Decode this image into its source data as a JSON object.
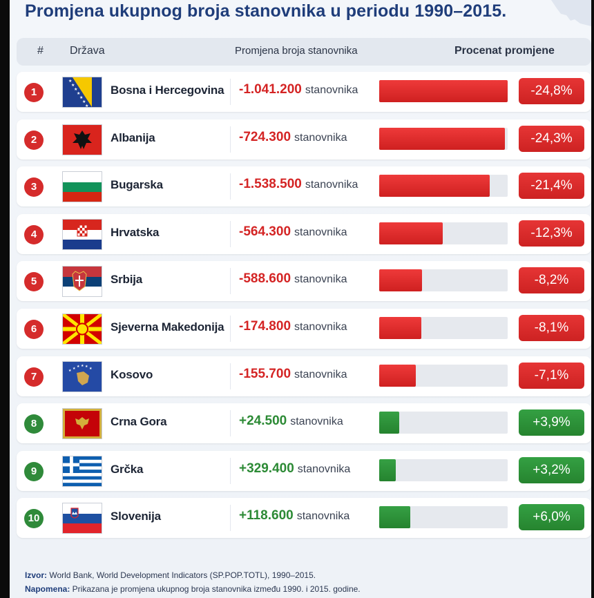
{
  "title": "Promjena ukupnog broja stanovnika u periodu 1990–2015.",
  "headers": {
    "num": "#",
    "country": "Država",
    "change": "Promjena broja stanovnika",
    "pct": "Procenat promjene"
  },
  "colors": {
    "negative": "#d52b2b",
    "positive": "#2f8a3a",
    "title": "#1f3d7a"
  },
  "chart_data": {
    "type": "table",
    "columns": [
      "#",
      "Država",
      "Promjena broja stanovnika",
      "Procenat promjene"
    ],
    "rows": [
      {
        "rank": "1",
        "country": "Bosna i Hercegovina",
        "flag": "flag-bosnia-icon",
        "change": "-1.041.200",
        "unit": "stanovnika",
        "pct": "-24,8%",
        "value": -24.8
      },
      {
        "rank": "2",
        "country": "Albanija",
        "flag": "flag-albania-icon",
        "change": "-724.300",
        "unit": "stanovnika",
        "pct": "-24,3%",
        "value": -24.3
      },
      {
        "rank": "3",
        "country": "Bugarska",
        "flag": "flag-bulgaria-icon",
        "change": "-1.538.500",
        "unit": "stanovnika",
        "pct": "-21,4%",
        "value": -21.4
      },
      {
        "rank": "4",
        "country": "Hrvatska",
        "flag": "flag-croatia-icon",
        "change": "-564.300",
        "unit": "stanovnika",
        "pct": "-12,3%",
        "value": -12.3
      },
      {
        "rank": "5",
        "country": "Srbija",
        "flag": "flag-serbia-icon",
        "change": "-588.600",
        "unit": "stanovnika",
        "pct": "-8,2%",
        "value": -8.2
      },
      {
        "rank": "6",
        "country": "Sjeverna Makedonija",
        "flag": "flag-north-macedonia-icon",
        "change": "-174.800",
        "unit": "stanovnika",
        "pct": "-8,1%",
        "value": -8.1
      },
      {
        "rank": "7",
        "country": "Kosovo",
        "flag": "flag-kosovo-icon",
        "change": "-155.700",
        "unit": "stanovnika",
        "pct": "-7,1%",
        "value": -7.1
      },
      {
        "rank": "8",
        "country": "Crna Gora",
        "flag": "flag-montenegro-icon",
        "change": "+24.500",
        "unit": "stanovnika",
        "pct": "+3,9%",
        "value": 3.9
      },
      {
        "rank": "9",
        "country": "Grčka",
        "flag": "flag-greece-icon",
        "change": "+329.400",
        "unit": "stanovnika",
        "pct": "+3,2%",
        "value": 3.2
      },
      {
        "rank": "10",
        "country": "Slovenija",
        "flag": "flag-slovenia-icon",
        "change": "+118.600",
        "unit": "stanovnika",
        "pct": "+6,0%",
        "value": 6.0
      }
    ]
  },
  "footer": {
    "source_label": "Izvor:",
    "source_text": " World Bank, World Development Indicators (SP.POP.TOTL), 1990–2015.",
    "note_label": "Napomena:",
    "note_text": " Prikazana je promjena ukupnog broja stanovnika između 1990. i 2015. godine."
  }
}
